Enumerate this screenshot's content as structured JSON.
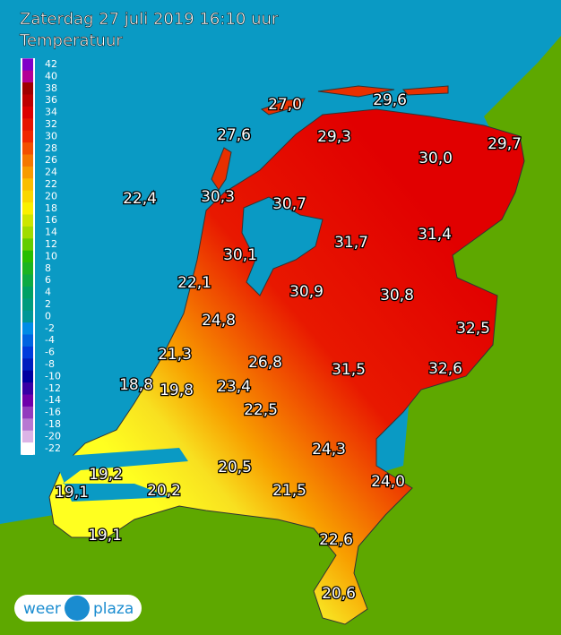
{
  "header": {
    "title": "Zaterdag 27 juli 2019 16:10 uur",
    "subtitle": "Temperatuur"
  },
  "legend": {
    "ticks": [
      42,
      40,
      38,
      36,
      34,
      32,
      30,
      28,
      26,
      24,
      22,
      20,
      18,
      16,
      14,
      12,
      10,
      8,
      6,
      4,
      2,
      0,
      -2,
      -4,
      -6,
      -8,
      -10,
      -12,
      -14,
      -16,
      -18,
      -20,
      -22
    ]
  },
  "stations": [
    "27,0",
    "29,6",
    "27,6",
    "29,3",
    "29,7",
    "30,0",
    "22,4",
    "30,3",
    "30,7",
    "31,7",
    "31,4",
    "30,1",
    "22,1",
    "30,9",
    "30,8",
    "24,8",
    "32,5",
    "21,3",
    "26,8",
    "31,5",
    "32,6",
    "18,8",
    "19,8",
    "23,4",
    "22,5",
    "24,3",
    "20,5",
    "19,2",
    "24,0",
    "19,1",
    "20,2",
    "21,5",
    "19,1",
    "22,6",
    "20,6"
  ],
  "logo": {
    "left": "weer",
    "right": "plaza"
  }
}
